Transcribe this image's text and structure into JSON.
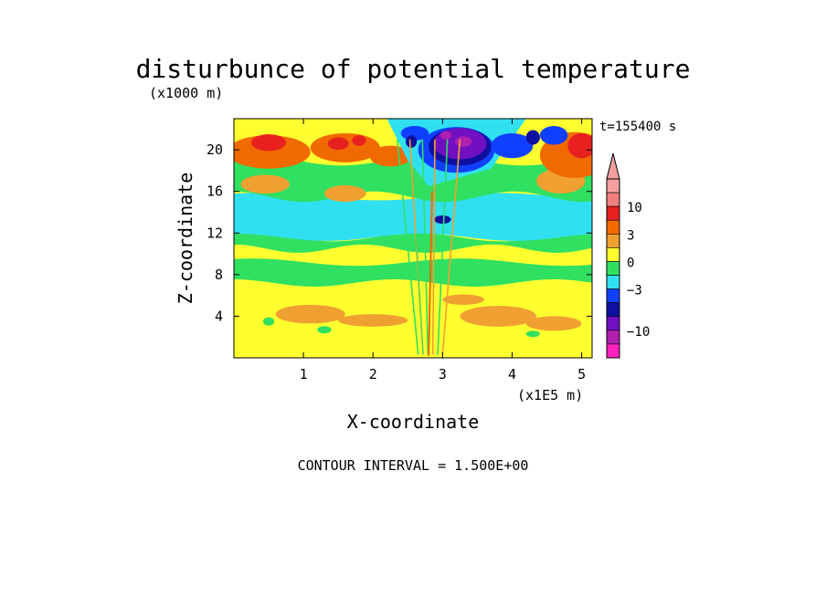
{
  "chart_data": {
    "type": "heatmap",
    "title": "disturbunce of potential temperature",
    "y_units_label": "(x1000 m)",
    "x_units_label": "(x1E5 m)",
    "xlabel": "X-coordinate",
    "ylabel": "Z-coordinate",
    "time_label": "t=155400 s",
    "footer": "CONTOUR INTERVAL = 1.500E+00",
    "xlim": [
      0,
      5.15
    ],
    "ylim": [
      0,
      23
    ],
    "x_ticks": [
      {
        "value": 1,
        "label": "1"
      },
      {
        "value": 2,
        "label": "2"
      },
      {
        "value": 3,
        "label": "3"
      },
      {
        "value": 4,
        "label": "4"
      },
      {
        "value": 5,
        "label": "5"
      }
    ],
    "y_ticks": [
      {
        "value": 4,
        "label": "4"
      },
      {
        "value": 8,
        "label": "8"
      },
      {
        "value": 12,
        "label": "12"
      },
      {
        "value": 16,
        "label": "16"
      },
      {
        "value": 20,
        "label": "20"
      }
    ],
    "colorbar": {
      "levels_high_to_low": [
        {
          "color": "#f4a0a0",
          "rep": 13
        },
        {
          "color": "#f08080",
          "rep": 10.5
        },
        {
          "color": "#e82020",
          "rep": 7.5
        },
        {
          "color": "#f06a00",
          "rep": 3.75
        },
        {
          "color": "#f0a030",
          "rep": 2.25
        },
        {
          "color": "#ffff30",
          "rep": 0.75
        },
        {
          "color": "#30e060",
          "rep": -0.75
        },
        {
          "color": "#30e0f0",
          "rep": -2.25
        },
        {
          "color": "#1040ff",
          "rep": -3.75
        },
        {
          "color": "#1010a0",
          "rep": -5.25
        },
        {
          "color": "#7010c0",
          "rep": -7.5
        },
        {
          "color": "#b020b0",
          "rep": -10.5
        },
        {
          "color": "#ff20c0",
          "rep": -13
        }
      ],
      "labels": [
        {
          "label": "10",
          "at_level": 2
        },
        {
          "label": "3",
          "at_level": 4
        },
        {
          "label": "0",
          "at_level": 6
        },
        {
          "label": "−3",
          "at_level": 8
        },
        {
          "label": "−10",
          "at_level": 11
        }
      ]
    }
  }
}
